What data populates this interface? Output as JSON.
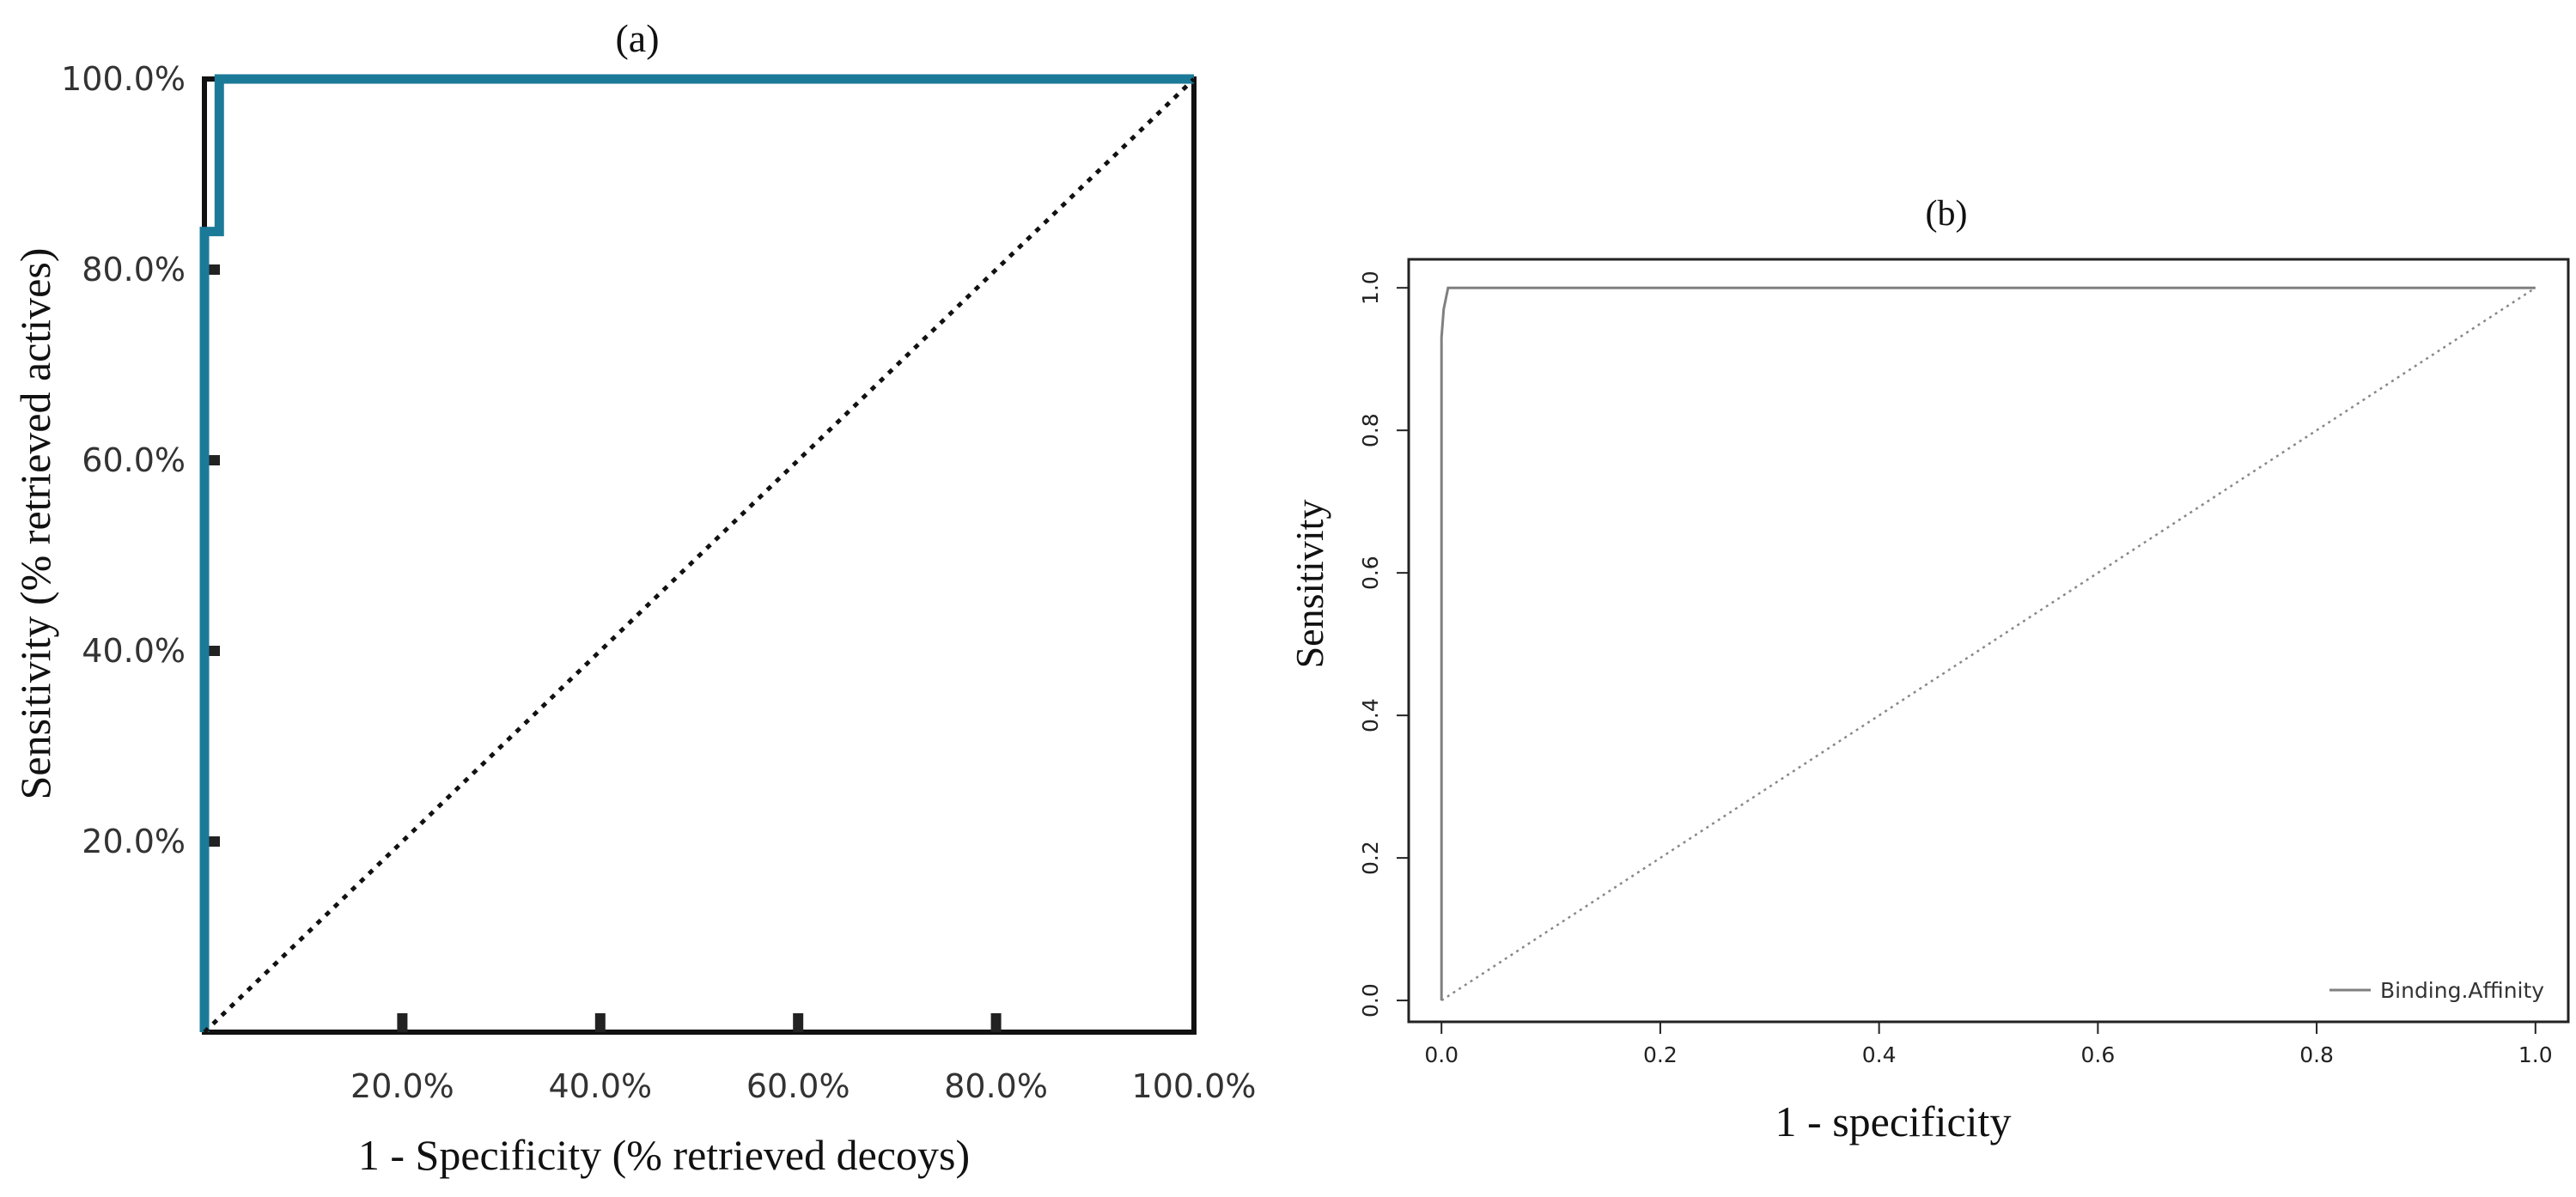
{
  "chart_data": [
    {
      "panel": "(a)",
      "type": "line",
      "title": "(a)",
      "xlabel": "1 - Specificity (% retrieved decoys)",
      "ylabel": "Sensitivity (% retrieved actives)",
      "xlim": [
        0,
        100
      ],
      "ylim": [
        0,
        100
      ],
      "xticks": [
        20,
        40,
        60,
        80,
        100
      ],
      "xtick_labels": [
        "20.0%",
        "40.0%",
        "60.0%",
        "80.0%",
        "100.0%"
      ],
      "yticks": [
        20,
        40,
        60,
        80,
        100
      ],
      "ytick_labels": [
        "20.0%",
        "40.0%",
        "60.0%",
        "80.0%",
        "100.0%"
      ],
      "grid": false,
      "series": [
        {
          "role": "roc",
          "color": "#1c7a99",
          "x": [
            0,
            0,
            1.5,
            1.5,
            100
          ],
          "y": [
            0,
            84,
            84,
            100,
            100
          ]
        },
        {
          "role": "reference",
          "style": "dotted",
          "color": "#111111",
          "x": [
            0,
            100
          ],
          "y": [
            0,
            100
          ]
        }
      ]
    },
    {
      "panel": "(b)",
      "type": "line",
      "title": "(b)",
      "xlabel": "1 - specificity",
      "ylabel": "Sensitivity",
      "xlim": [
        -0.03,
        1.03
      ],
      "ylim": [
        -0.03,
        1.04
      ],
      "xticks": [
        0.0,
        0.2,
        0.4,
        0.6,
        0.8,
        1.0
      ],
      "xtick_labels": [
        "0.0",
        "0.2",
        "0.4",
        "0.6",
        "0.8",
        "1.0"
      ],
      "yticks": [
        0.0,
        0.2,
        0.4,
        0.6,
        0.8,
        1.0
      ],
      "ytick_labels": [
        "0.0",
        "0.2",
        "0.4",
        "0.6",
        "0.8",
        "1.0"
      ],
      "grid": false,
      "legend": {
        "position": "bottom-right",
        "entries": [
          "Binding.Affinity"
        ]
      },
      "series": [
        {
          "name": "Binding.Affinity",
          "color": "#808080",
          "x": [
            0,
            0,
            0.002,
            0.006,
            1.0
          ],
          "y": [
            0,
            0.93,
            0.97,
            1.0,
            1.0
          ]
        },
        {
          "role": "reference",
          "style": "dotted",
          "color": "#888888",
          "x": [
            0,
            1
          ],
          "y": [
            0,
            1
          ]
        }
      ]
    }
  ]
}
